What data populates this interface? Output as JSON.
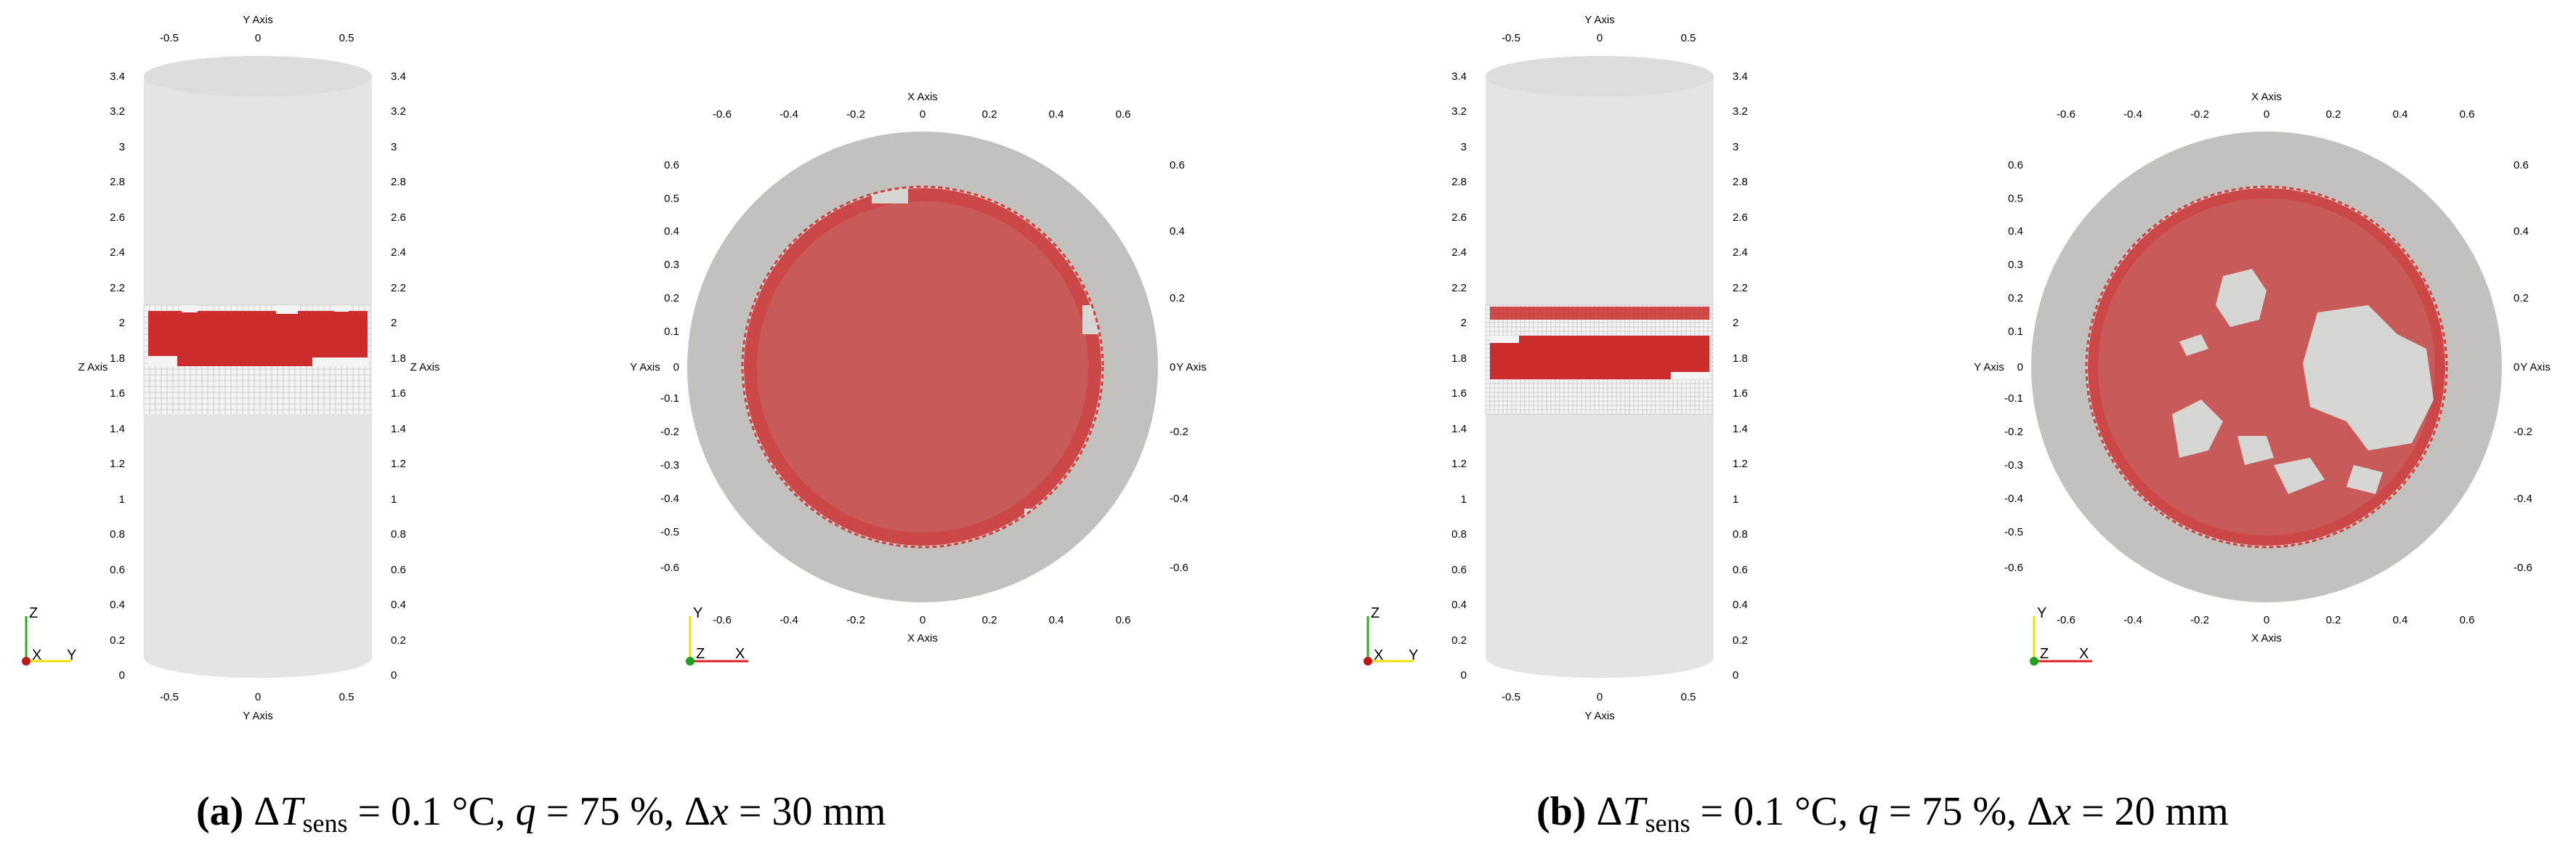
{
  "colors": {
    "cylinder": "#e4e4e2",
    "cylinder_edge": "#cfcfcd",
    "wall_ring": "#c2c1bd",
    "inner_background": "#d6d6d2",
    "melt_region": "#c95a5a",
    "red_cells": "#cc2c2c",
    "grid_lines": "#b9b9b9",
    "axis_x": "#e02020",
    "axis_y": "#e8e000",
    "axis_z": "#20b020"
  },
  "axis_titles": {
    "y_axis": "Y Axis",
    "z_axis": "Z Axis",
    "x_axis": "X Axis"
  },
  "axis_triad": {
    "side": {
      "up": "Z",
      "left": "X",
      "right": "Y"
    },
    "top": {
      "up": "Y",
      "left": "Z",
      "right": "X"
    }
  },
  "ticks": {
    "side_y": [
      "-0.5",
      "0",
      "0.5"
    ],
    "side_z": [
      "3.4",
      "3.2",
      "3",
      "2.8",
      "2.6",
      "2.4",
      "2.2",
      "2",
      "1.8",
      "1.6",
      "1.4",
      "1.2",
      "1",
      "0.8",
      "0.6",
      "0.4",
      "0.2",
      "0"
    ],
    "top_x": [
      "-0.6",
      "-0.4",
      "-0.2",
      "0",
      "0.2",
      "0.4",
      "0.6"
    ],
    "top_y_left": [
      "0.6",
      "0.5",
      "0.4",
      "0.3",
      "0.2",
      "0.1",
      "0",
      "-0.1",
      "-0.2",
      "-0.3",
      "-0.4",
      "-0.5",
      "-0.6"
    ],
    "top_y_right": [
      "0.6",
      "0.4",
      "0.2",
      "0",
      "-0.2",
      "-0.4",
      "-0.6"
    ]
  },
  "captions": {
    "a": {
      "tag": "(a)",
      "delta": "Δ",
      "T": "T",
      "sub": "sens",
      "rest1": " = 0.1 °C, ",
      "q": "q",
      "rest2": " = 75 %, Δ",
      "x": "x",
      "rest3": " = 30 mm"
    },
    "b": {
      "tag": "(b)",
      "delta": "Δ",
      "T": "T",
      "sub": "sens",
      "rest1": " = 0.1 °C, ",
      "q": "q",
      "rest2": " = 75 %, Δ",
      "x": "x",
      "rest3": " = 20 mm"
    }
  }
}
